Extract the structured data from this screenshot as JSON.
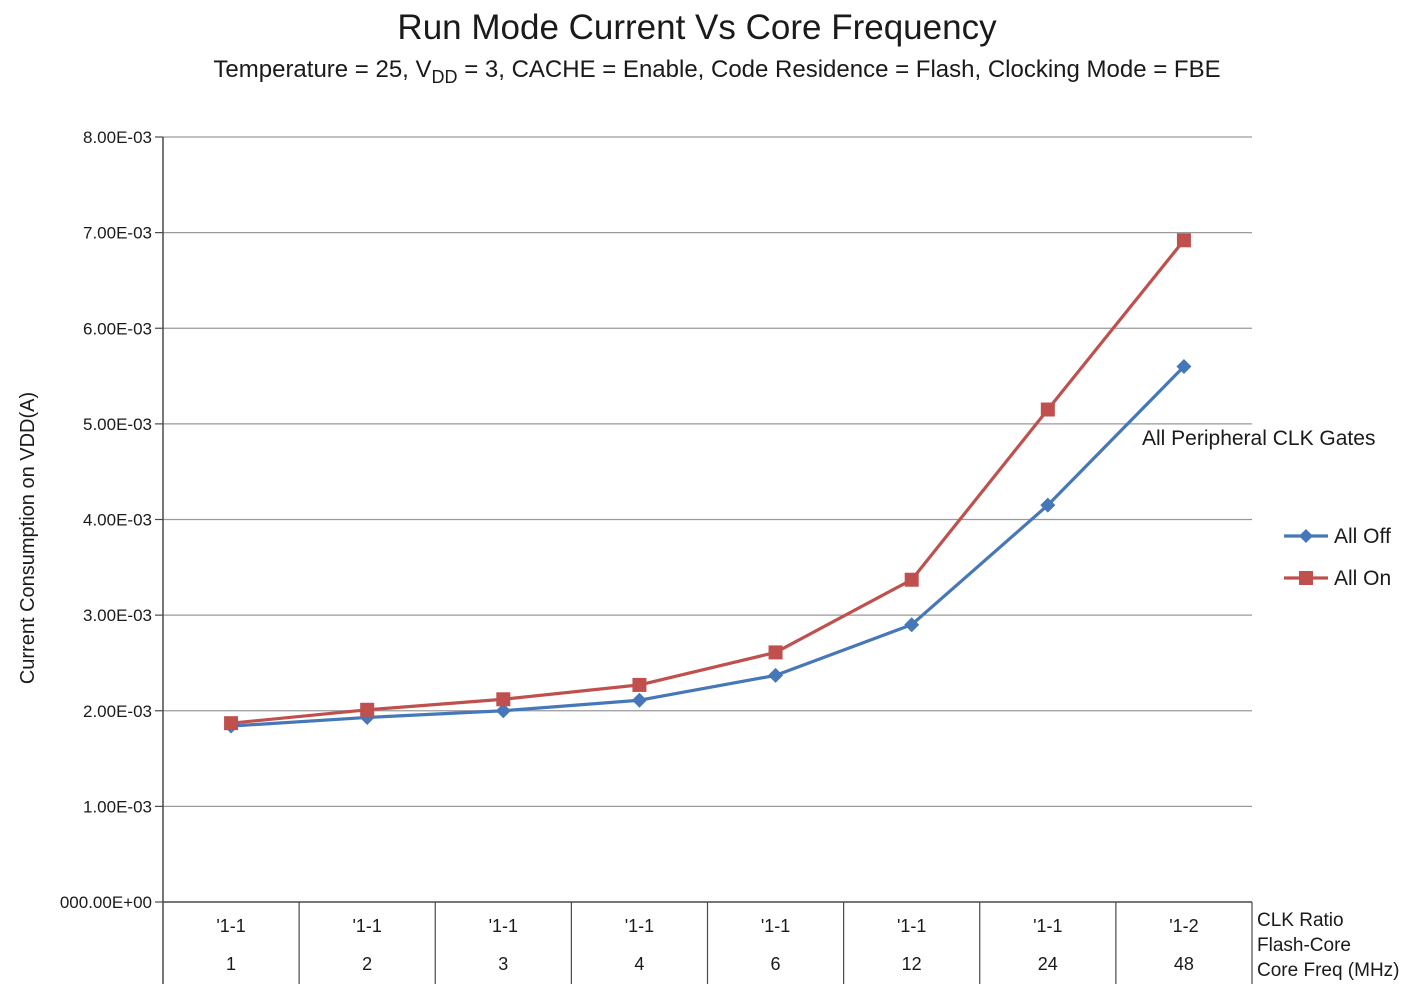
{
  "chart_data": {
    "type": "line",
    "title": "Run Mode Current Vs Core Frequency",
    "subtitle": {
      "prefix": "Temperature = 25, V",
      "subscript": "DD",
      "suffix": " = 3, CACHE = Enable, Code Residence = Flash, Clocking Mode = FBE"
    },
    "ylabel": "Current Consumption on VDD(A)",
    "ylim": [
      0,
      0.008
    ],
    "yticks": [
      0,
      0.001,
      0.002,
      0.003,
      0.004,
      0.005,
      0.006,
      0.007,
      0.008
    ],
    "ytick_labels": [
      "000.00E+00",
      "1.00E-03",
      "2.00E-03",
      "3.00E-03",
      "4.00E-03",
      "5.00E-03",
      "6.00E-03",
      "7.00E-03",
      "8.00E-03"
    ],
    "categories": [
      "1",
      "2",
      "3",
      "4",
      "6",
      "12",
      "24",
      "48"
    ],
    "clk_ratios": [
      "'1-1",
      "'1-1",
      "'1-1",
      "'1-1",
      "'1-1",
      "'1-1",
      "'1-1",
      "'1-2"
    ],
    "x_row_labels": [
      "CLK Ratio",
      "Flash-Core",
      "Core Freq (MHz)"
    ],
    "legend_title": "All Peripheral CLK Gates",
    "legend_position": "right",
    "grid": true,
    "series": [
      {
        "name": "All Off",
        "color": "#4677b8",
        "marker": "diamond",
        "values": [
          0.00184,
          0.00193,
          0.002,
          0.00211,
          0.00237,
          0.0029,
          0.00415,
          0.0056
        ]
      },
      {
        "name": "All On",
        "color": "#c0504d",
        "marker": "square",
        "values": [
          0.00187,
          0.00201,
          0.00212,
          0.00227,
          0.00261,
          0.00337,
          0.00515,
          0.00692
        ]
      }
    ]
  }
}
